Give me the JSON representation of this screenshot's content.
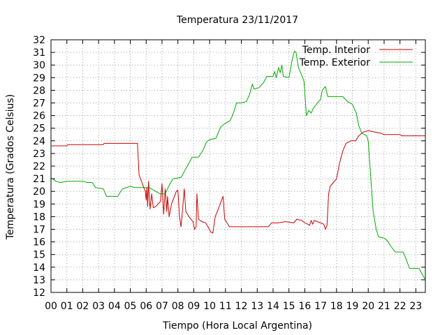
{
  "chart_data": {
    "type": "line",
    "title": "Temperatura 23/11/2017",
    "xlabel": "Tiempo (Hora Local Argentina)",
    "ylabel": "Temperatura (Grados Celsius)",
    "xlim": [
      0,
      23.6
    ],
    "ylim": [
      12,
      32
    ],
    "xticks": [
      "00",
      "01",
      "02",
      "03",
      "04",
      "05",
      "06",
      "07",
      "08",
      "09",
      "10",
      "11",
      "12",
      "13",
      "14",
      "15",
      "16",
      "17",
      "18",
      "19",
      "20",
      "21",
      "22",
      "23"
    ],
    "yticks": [
      12,
      13,
      14,
      15,
      16,
      17,
      18,
      19,
      20,
      21,
      22,
      23,
      24,
      25,
      26,
      27,
      28,
      29,
      30,
      31,
      32
    ],
    "grid": true,
    "legend_position": "top-right",
    "series": [
      {
        "name": "Temp. Interior",
        "color": "#cc0000",
        "points": [
          [
            0.0,
            23.6
          ],
          [
            1.0,
            23.6
          ],
          [
            1.05,
            23.7
          ],
          [
            3.3,
            23.7
          ],
          [
            3.35,
            23.8
          ],
          [
            5.45,
            23.8
          ],
          [
            5.55,
            21.3
          ],
          [
            5.85,
            20.3
          ],
          [
            5.95,
            20.0
          ],
          [
            6.0,
            19.3
          ],
          [
            6.05,
            20.3
          ],
          [
            6.1,
            18.8
          ],
          [
            6.15,
            20.8
          ],
          [
            6.25,
            18.6
          ],
          [
            6.35,
            19.8
          ],
          [
            6.45,
            18.7
          ],
          [
            6.6,
            18.8
          ],
          [
            6.75,
            19.0
          ],
          [
            6.9,
            19.2
          ],
          [
            7.0,
            20.6
          ],
          [
            7.05,
            19.4
          ],
          [
            7.1,
            18.2
          ],
          [
            7.2,
            20.2
          ],
          [
            7.3,
            18.4
          ],
          [
            7.35,
            19.6
          ],
          [
            7.45,
            18.0
          ],
          [
            7.6,
            19.0
          ],
          [
            7.75,
            19.5
          ],
          [
            7.9,
            20.0
          ],
          [
            8.0,
            20.1
          ],
          [
            8.1,
            18.0
          ],
          [
            8.2,
            17.2
          ],
          [
            8.3,
            18.6
          ],
          [
            8.4,
            20.2
          ],
          [
            8.5,
            18.4
          ],
          [
            8.7,
            18.0
          ],
          [
            8.95,
            17.6
          ],
          [
            9.05,
            17.0
          ],
          [
            9.15,
            17.2
          ],
          [
            9.2,
            19.8
          ],
          [
            9.3,
            17.8
          ],
          [
            9.5,
            17.6
          ],
          [
            9.75,
            17.5
          ],
          [
            9.9,
            17.2
          ],
          [
            10.05,
            16.8
          ],
          [
            10.2,
            16.7
          ],
          [
            10.35,
            18.0
          ],
          [
            10.55,
            18.6
          ],
          [
            10.75,
            19.3
          ],
          [
            10.85,
            19.6
          ],
          [
            10.95,
            17.8
          ],
          [
            11.1,
            17.5
          ],
          [
            11.25,
            17.2
          ],
          [
            13.7,
            17.2
          ],
          [
            13.9,
            17.5
          ],
          [
            14.3,
            17.5
          ],
          [
            14.8,
            17.6
          ],
          [
            15.3,
            17.5
          ],
          [
            15.5,
            17.8
          ],
          [
            15.8,
            17.7
          ],
          [
            16.0,
            17.5
          ],
          [
            16.2,
            17.4
          ],
          [
            16.3,
            17.3
          ],
          [
            16.4,
            17.7
          ],
          [
            16.5,
            17.4
          ],
          [
            16.6,
            17.7
          ],
          [
            16.8,
            17.6
          ],
          [
            17.0,
            17.5
          ],
          [
            17.2,
            17.4
          ],
          [
            17.3,
            17.0
          ],
          [
            17.4,
            17.3
          ],
          [
            17.5,
            19.8
          ],
          [
            17.6,
            20.4
          ],
          [
            17.8,
            20.7
          ],
          [
            18.0,
            21.0
          ],
          [
            18.2,
            22.3
          ],
          [
            18.4,
            23.2
          ],
          [
            18.6,
            23.8
          ],
          [
            18.9,
            24.0
          ],
          [
            19.2,
            24.0
          ],
          [
            19.4,
            24.4
          ],
          [
            19.7,
            24.7
          ],
          [
            20.0,
            24.8
          ],
          [
            20.4,
            24.7
          ],
          [
            20.8,
            24.6
          ],
          [
            21.0,
            24.5
          ],
          [
            22.0,
            24.5
          ],
          [
            22.1,
            24.4
          ],
          [
            23.6,
            24.4
          ]
        ]
      },
      {
        "name": "Temp. Exterior",
        "color": "#00aa00",
        "points": [
          [
            0.0,
            21.1
          ],
          [
            0.3,
            20.8
          ],
          [
            0.6,
            20.7
          ],
          [
            1.0,
            20.8
          ],
          [
            2.0,
            20.8
          ],
          [
            2.3,
            20.7
          ],
          [
            2.6,
            20.7
          ],
          [
            2.8,
            20.3
          ],
          [
            3.3,
            20.2
          ],
          [
            3.5,
            19.6
          ],
          [
            4.2,
            19.6
          ],
          [
            4.5,
            20.2
          ],
          [
            5.0,
            20.4
          ],
          [
            5.3,
            20.3
          ],
          [
            5.6,
            20.3
          ],
          [
            6.2,
            20.3
          ],
          [
            6.6,
            20.0
          ],
          [
            6.9,
            19.8
          ],
          [
            7.2,
            19.8
          ],
          [
            7.5,
            20.6
          ],
          [
            7.7,
            21.0
          ],
          [
            8.2,
            21.1
          ],
          [
            8.5,
            21.8
          ],
          [
            8.9,
            22.7
          ],
          [
            9.3,
            22.7
          ],
          [
            9.6,
            23.3
          ],
          [
            9.8,
            23.9
          ],
          [
            10.0,
            24.1
          ],
          [
            10.4,
            24.2
          ],
          [
            10.7,
            25.1
          ],
          [
            11.0,
            25.4
          ],
          [
            11.3,
            25.6
          ],
          [
            11.5,
            26.2
          ],
          [
            11.7,
            27.0
          ],
          [
            12.0,
            27.0
          ],
          [
            12.3,
            27.1
          ],
          [
            12.5,
            27.6
          ],
          [
            12.7,
            28.5
          ],
          [
            12.8,
            28.1
          ],
          [
            13.1,
            28.2
          ],
          [
            13.4,
            28.6
          ],
          [
            13.6,
            29.1
          ],
          [
            14.0,
            29.1
          ],
          [
            14.1,
            29.5
          ],
          [
            14.2,
            29.0
          ],
          [
            14.35,
            29.8
          ],
          [
            14.45,
            29.4
          ],
          [
            14.55,
            30.0
          ],
          [
            14.65,
            29.1
          ],
          [
            15.0,
            29.0
          ],
          [
            15.2,
            30.4
          ],
          [
            15.35,
            31.1
          ],
          [
            15.45,
            31.0
          ],
          [
            15.6,
            29.8
          ],
          [
            15.8,
            29.2
          ],
          [
            15.95,
            28.7
          ],
          [
            16.1,
            26.0
          ],
          [
            16.25,
            26.4
          ],
          [
            16.4,
            26.2
          ],
          [
            16.55,
            26.6
          ],
          [
            16.8,
            27.0
          ],
          [
            17.0,
            27.3
          ],
          [
            17.1,
            28.0
          ],
          [
            17.3,
            28.3
          ],
          [
            17.45,
            27.5
          ],
          [
            17.6,
            27.5
          ],
          [
            18.1,
            27.5
          ],
          [
            18.4,
            27.5
          ],
          [
            18.7,
            27.1
          ],
          [
            19.0,
            26.9
          ],
          [
            19.25,
            26.2
          ],
          [
            19.4,
            25.2
          ],
          [
            19.6,
            24.6
          ],
          [
            19.9,
            24.4
          ],
          [
            20.0,
            24.0
          ],
          [
            20.15,
            21.3
          ],
          [
            20.3,
            18.5
          ],
          [
            20.5,
            17.0
          ],
          [
            20.65,
            16.4
          ],
          [
            21.0,
            16.3
          ],
          [
            21.2,
            16.1
          ],
          [
            21.4,
            15.7
          ],
          [
            21.7,
            15.2
          ],
          [
            22.2,
            15.2
          ],
          [
            22.4,
            14.6
          ],
          [
            22.6,
            13.9
          ],
          [
            23.2,
            13.9
          ],
          [
            23.6,
            13.0
          ]
        ]
      }
    ]
  }
}
